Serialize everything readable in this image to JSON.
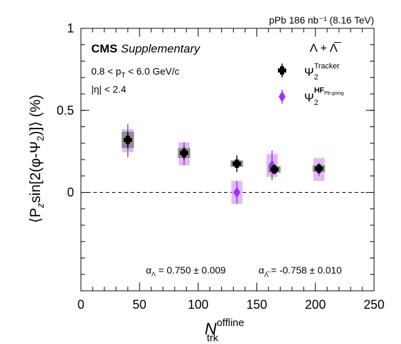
{
  "chart_data": {
    "type": "scatter",
    "top_label": "pPb 186 nb⁻¹ (8.16 TeV)",
    "experiment": "CMS",
    "experiment_tag": "Supplementary",
    "cuts": [
      "0.8 < p",
      "T",
      " < 6.0 GeV/c"
    ],
    "eta_cut": "|η| < 2.4",
    "particle_label": "Λ + Λ̅",
    "ylabel": "⟨P",
    "ylabel_sub": "z",
    "ylabel_rest": "sin[2(φ-Ψ",
    "ylabel_sub2": "2",
    "ylabel_end": ")]⟩ (%)",
    "xlabel": "N",
    "xlabel_sup": "offline",
    "xlabel_sub": "trk",
    "xlim": [
      0,
      250
    ],
    "ylim": [
      -0.6,
      1.0
    ],
    "xticks": [
      0,
      50,
      100,
      150,
      200,
      250
    ],
    "yticks": [
      0,
      0.5,
      1
    ],
    "ytick_labels": [
      "0",
      "0.5",
      "1"
    ],
    "zero_line": true,
    "alpha_text": {
      "lambda": "α",
      "lambda_sub": "Λ",
      "lambda_val": " = 0.750 ± 0.009",
      "antilambda": "α",
      "antilambda_sub": "Λ̅",
      "antilambda_val": " = -0.758 ± 0.010"
    },
    "series": [
      {
        "name": "Ψ",
        "name_sub": "2",
        "name_sup": "Tracker",
        "marker": "cross",
        "color": "#000000",
        "sys_color": "#888888",
        "points": [
          {
            "x": 40,
            "y": 0.32,
            "stat": 0.05,
            "sys": 0.05
          },
          {
            "x": 88,
            "y": 0.24,
            "stat": 0.04,
            "sys": 0.03
          },
          {
            "x": 133,
            "y": 0.175,
            "stat": 0.05,
            "sys": 0.02
          },
          {
            "x": 165,
            "y": 0.14,
            "stat": 0.03,
            "sys": 0.02
          },
          {
            "x": 203,
            "y": 0.145,
            "stat": 0.03,
            "sys": 0.02
          }
        ]
      },
      {
        "name": "Ψ",
        "name_sub": "2",
        "name_sup": "HF",
        "name_sup_sub": "Pb-going",
        "marker": "diamond",
        "color": "#9b30ff",
        "sys_color": "#d9a8f0",
        "points": [
          {
            "x": 40,
            "y": 0.315,
            "stat": 0.1,
            "sys": 0.07
          },
          {
            "x": 88,
            "y": 0.235,
            "stat": 0.07,
            "sys": 0.07
          },
          {
            "x": 133,
            "y": 0.0,
            "stat": 0.07,
            "sys": 0.07
          },
          {
            "x": 163,
            "y": 0.165,
            "stat": 0.09,
            "sys": 0.07
          },
          {
            "x": 203,
            "y": 0.14,
            "stat": 0.04,
            "sys": 0.07
          }
        ]
      }
    ]
  }
}
